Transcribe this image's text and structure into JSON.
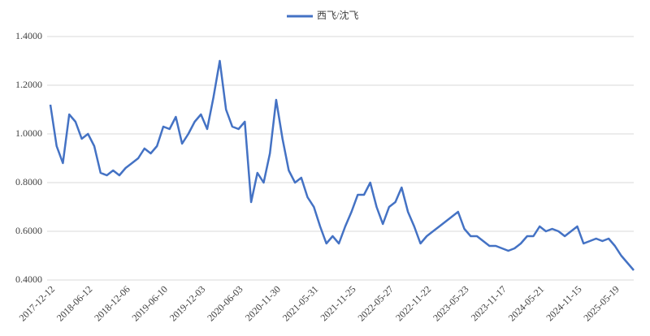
{
  "chart_data": {
    "type": "line",
    "categories": [
      "2017-12-12",
      null,
      null,
      null,
      null,
      null,
      "2018-06-12",
      null,
      null,
      null,
      null,
      null,
      "2018-12-06",
      null,
      null,
      null,
      null,
      null,
      "2019-06-10",
      null,
      null,
      null,
      null,
      null,
      "2019-12-03",
      null,
      null,
      null,
      null,
      null,
      "2020-06-03",
      null,
      null,
      null,
      null,
      null,
      "2020-11-30",
      null,
      null,
      null,
      null,
      null,
      "2021-05-31",
      null,
      null,
      null,
      null,
      null,
      "2021-11-25",
      null,
      null,
      null,
      null,
      null,
      "2022-05-27",
      null,
      null,
      null,
      null,
      null,
      "2022-11-22",
      null,
      null,
      null,
      null,
      null,
      "2023-05-23",
      null,
      null,
      null,
      null,
      null,
      "2023-11-17",
      null,
      null,
      null,
      null,
      null,
      "2024-05-21",
      null,
      null,
      null,
      null,
      null,
      "2024-11-15",
      null,
      null,
      null,
      null,
      null,
      "2025-05-19",
      null,
      null,
      null
    ],
    "series": [
      {
        "name": "西飞/沈飞",
        "color": "#4472c4",
        "values": [
          1.12,
          0.95,
          0.88,
          1.08,
          1.05,
          0.98,
          1.0,
          0.95,
          0.84,
          0.83,
          0.85,
          0.83,
          0.86,
          0.88,
          0.9,
          0.94,
          0.92,
          0.95,
          1.03,
          1.02,
          1.07,
          0.96,
          1.0,
          1.05,
          1.08,
          1.02,
          1.15,
          1.3,
          1.1,
          1.03,
          1.02,
          1.05,
          0.72,
          0.84,
          0.8,
          0.92,
          1.14,
          0.98,
          0.85,
          0.8,
          0.82,
          0.74,
          0.7,
          0.62,
          0.55,
          0.58,
          0.55,
          0.62,
          0.68,
          0.75,
          0.75,
          0.8,
          0.7,
          0.63,
          0.7,
          0.72,
          0.78,
          0.68,
          0.62,
          0.55,
          0.58,
          0.6,
          0.62,
          0.64,
          0.66,
          0.68,
          0.61,
          0.58,
          0.58,
          0.56,
          0.54,
          0.54,
          0.53,
          0.52,
          0.53,
          0.55,
          0.58,
          0.58,
          0.62,
          0.6,
          0.61,
          0.6,
          0.58,
          0.6,
          0.62,
          0.55,
          0.56,
          0.57,
          0.56,
          0.57,
          0.54,
          0.5,
          0.47,
          0.44
        ]
      }
    ],
    "ylim": [
      0.4,
      1.4
    ],
    "yticks": [
      {
        "value": 0.4,
        "label": "0.4000"
      },
      {
        "value": 0.6,
        "label": "0.6000"
      },
      {
        "value": 0.8,
        "label": "0.8000"
      },
      {
        "value": 1.0,
        "label": "1.0000"
      },
      {
        "value": 1.2,
        "label": "1.2000"
      },
      {
        "value": 1.4,
        "label": "1.4000"
      }
    ],
    "grid": true,
    "legend": "top"
  }
}
